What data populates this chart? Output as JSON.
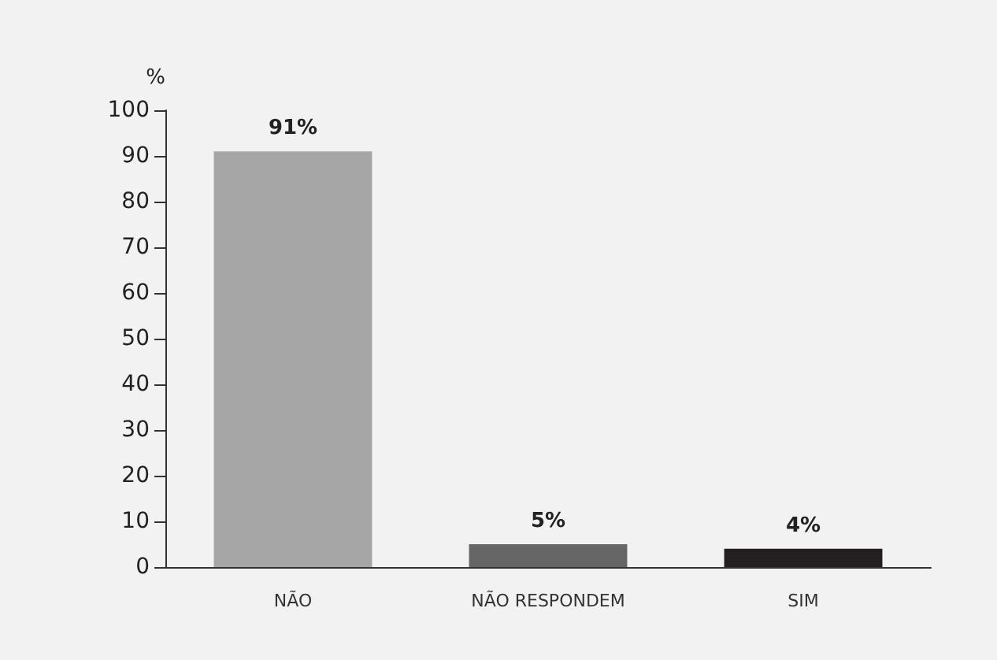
{
  "chart_data": {
    "type": "bar",
    "ylabel": "%",
    "categories": [
      "NÃO",
      "NÃO RESPONDEM",
      "SIM"
    ],
    "values": [
      91,
      5,
      4
    ],
    "colors": [
      "#a6a6a6",
      "#666666",
      "#231f20"
    ],
    "value_labels": [
      "91%",
      "5%",
      "4%"
    ],
    "ylim": [
      0,
      100
    ],
    "yticks": [
      0,
      10,
      20,
      30,
      40,
      50,
      60,
      70,
      80,
      90,
      100
    ],
    "grid": false
  }
}
